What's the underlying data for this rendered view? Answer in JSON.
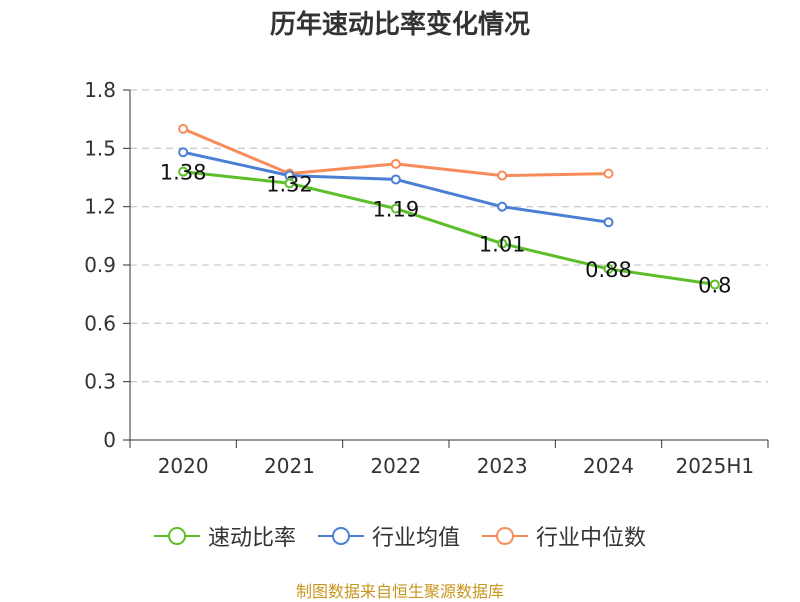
{
  "chart_data": {
    "type": "line",
    "title": "历年速动比率变化情况",
    "categories": [
      "2020",
      "2021",
      "2022",
      "2023",
      "2024",
      "2025H1"
    ],
    "y_ticks": [
      "0",
      "0.3",
      "0.6",
      "0.9",
      "1.2",
      "1.5",
      "1.8"
    ],
    "ylim": [
      0,
      1.8
    ],
    "grid": true,
    "legend_position": "bottom",
    "series": [
      {
        "name": "速动比率",
        "color": "#5cbf2a",
        "values": [
          1.38,
          1.32,
          1.19,
          1.01,
          0.88,
          0.8
        ],
        "labels": [
          "1.38",
          "1.32",
          "1.19",
          "1.01",
          "0.88",
          "0.8"
        ]
      },
      {
        "name": "行业均值",
        "color": "#4a7fd4",
        "values": [
          1.48,
          1.36,
          1.34,
          1.2,
          1.12,
          null
        ]
      },
      {
        "name": "行业中位数",
        "color": "#f78c5a",
        "values": [
          1.6,
          1.37,
          1.42,
          1.36,
          1.37,
          null
        ]
      }
    ]
  },
  "source_note": "制图数据来自恒生聚源数据库"
}
